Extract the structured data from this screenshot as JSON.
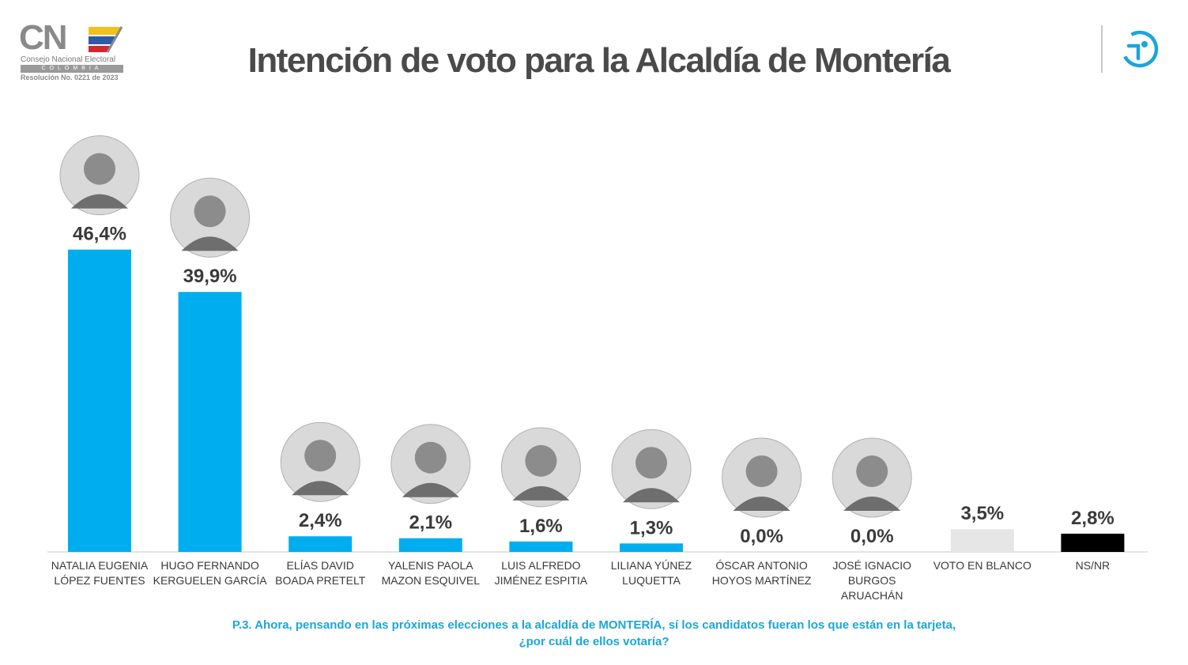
{
  "header": {
    "title": "Intención de voto para la Alcaldía de Montería",
    "logo_left": {
      "mark": "CN",
      "line1": "Consejo Nacional Electoral",
      "line2": "COLOMBIA",
      "line3": "Resolución No. 0221 de 2023"
    },
    "logo_right_icon": "pollster-circle-logo-icon"
  },
  "colors": {
    "candidate_bar": "#00aeef",
    "blank_vote_bar": "#e6e6e6",
    "nsnr_bar": "#000000",
    "question_text": "#1ba6d9",
    "title_text": "#4a4a4a"
  },
  "chart_data": {
    "type": "bar",
    "categories": [
      [
        "NATALIA EUGENIA",
        "LÓPEZ FUENTES"
      ],
      [
        "HUGO FERNANDO",
        "KERGUELEN GARCÍA"
      ],
      [
        "ELÍAS DAVID",
        "BOADA PRETELT"
      ],
      [
        "YALENIS PAOLA",
        "MAZON ESQUIVEL"
      ],
      [
        "LUIS ALFREDO",
        "JIMÉNEZ ESPITIA"
      ],
      [
        "LILIANA YÚNEZ",
        "LUQUETTA"
      ],
      [
        "ÓSCAR ANTONIO",
        "HOYOS MARTÍNEZ"
      ],
      [
        "JOSÉ IGNACIO",
        "BURGOS",
        "ARUACHÁN"
      ],
      [
        "VOTO EN BLANCO"
      ],
      [
        "NS/NR"
      ]
    ],
    "values": [
      46.4,
      39.9,
      2.4,
      2.1,
      1.6,
      1.3,
      0.0,
      0.0,
      3.5,
      2.8
    ],
    "value_labels": [
      "46,4%",
      "39,9%",
      "2,4%",
      "2,1%",
      "1,6%",
      "1,3%",
      "0,0%",
      "0,0%",
      "3,5%",
      "2,8%"
    ],
    "bar_colors": [
      "#00aeef",
      "#00aeef",
      "#00aeef",
      "#00aeef",
      "#00aeef",
      "#00aeef",
      "#00aeef",
      "#00aeef",
      "#e6e6e6",
      "#000000"
    ],
    "has_photo": [
      true,
      true,
      true,
      true,
      true,
      true,
      true,
      true,
      false,
      false
    ],
    "ylim": [
      0,
      50
    ],
    "grid": false,
    "legend": "none"
  },
  "question": {
    "line1": "P.3.  Ahora, pensando en las próximas elecciones a la alcaldía de MONTERÍA, sí los candidatos fueran los que están en la tarjeta,",
    "line2": "¿por cuál de ellos votaría?"
  }
}
